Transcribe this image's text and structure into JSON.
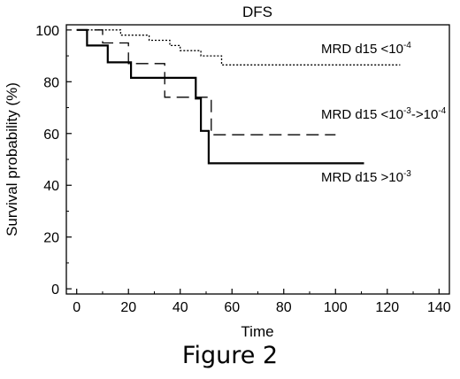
{
  "figure_caption": "Figure 2",
  "chart_data": {
    "type": "line",
    "step": true,
    "title": "DFS",
    "xlabel": "Time",
    "ylabel": "Survival probability (%)",
    "xlim": [
      -4,
      144
    ],
    "ylim": [
      -2,
      102
    ],
    "xticks": [
      0,
      20,
      40,
      60,
      80,
      100,
      120,
      140
    ],
    "yticks": [
      0,
      20,
      40,
      60,
      80,
      100
    ],
    "grid": false,
    "series": [
      {
        "name": "MRD d15 <10-4",
        "label_base": "MRD d15 <10",
        "label_exp": "-4",
        "style": "dotted",
        "color": "#000000",
        "points": [
          [
            0,
            100
          ],
          [
            17,
            100
          ],
          [
            17,
            98
          ],
          [
            28,
            98
          ],
          [
            28,
            96
          ],
          [
            36,
            96
          ],
          [
            36,
            94
          ],
          [
            40,
            94
          ],
          [
            40,
            92
          ],
          [
            48,
            92
          ],
          [
            48,
            90
          ],
          [
            56,
            90
          ],
          [
            56,
            86.5
          ],
          [
            125,
            86.5
          ]
        ]
      },
      {
        "name": "MRD d15 <10-3->10-4",
        "label_base": "MRD d15 <10",
        "label_exp": "-3",
        "label_mid": "->10",
        "label_exp2": "-4",
        "style": "dashed",
        "color": "#000000",
        "points": [
          [
            0,
            100
          ],
          [
            10,
            100
          ],
          [
            10,
            95
          ],
          [
            20,
            95
          ],
          [
            20,
            87
          ],
          [
            34,
            87
          ],
          [
            34,
            74
          ],
          [
            47,
            74
          ],
          [
            47,
            74
          ],
          [
            52,
            74
          ],
          [
            52,
            59.5
          ],
          [
            100,
            59.5
          ]
        ]
      },
      {
        "name": "MRD d15 >10-3",
        "label_base": "MRD d15 >10",
        "label_exp": "-3",
        "style": "solid",
        "color": "#000000",
        "points": [
          [
            0,
            100
          ],
          [
            4,
            100
          ],
          [
            4,
            94
          ],
          [
            12,
            94
          ],
          [
            12,
            87.5
          ],
          [
            21,
            87.5
          ],
          [
            21,
            81.5
          ],
          [
            46,
            81.5
          ],
          [
            46,
            73.5
          ],
          [
            48,
            73.5
          ],
          [
            48,
            61
          ],
          [
            51,
            61
          ],
          [
            51,
            48.5
          ],
          [
            111,
            48.5
          ]
        ]
      }
    ]
  }
}
